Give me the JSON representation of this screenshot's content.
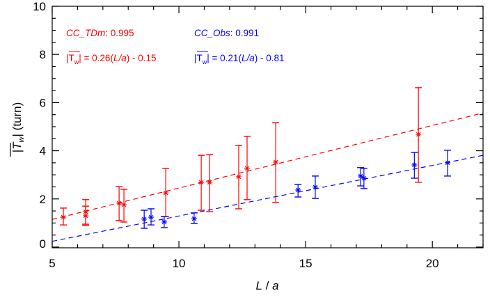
{
  "chart_data": {
    "type": "scatter",
    "xlabel": {
      "italic": "L",
      "rest": " / ",
      "italic2": "a"
    },
    "ylabel": {
      "bar_symbol": "T",
      "subscript": "w",
      "unit": "(turn)"
    },
    "xlim": [
      5,
      22
    ],
    "ylim": [
      -0.03,
      10
    ],
    "xticks": [
      5,
      10,
      15,
      20
    ],
    "yticks": [
      0,
      2,
      4,
      6,
      8,
      10
    ],
    "grid": false,
    "colors": {
      "red": "#ff0000",
      "blue": "#0000ff",
      "axis": "#000000"
    },
    "annotations": {
      "red_cc_name": "CC_TDm",
      "red_cc_value": ": 0.995",
      "blue_cc_name": "CC_Obs",
      "blue_cc_value": ": 0.991",
      "red_fit_prefix": " = 0.26(",
      "red_fit_var": "L/a",
      "red_fit_suffix": ") - 0.15",
      "blue_fit_prefix": " = 0.21(",
      "blue_fit_var": "L/a",
      "blue_fit_suffix": ") - 0.81",
      "fit_symbol": "T",
      "fit_subscript": "w"
    },
    "series": [
      {
        "color": "#ff0000",
        "marker": "asterisk",
        "fit": {
          "slope": 0.26,
          "intercept": -0.15,
          "style": "dashed"
        },
        "points": [
          {
            "x": 5.44,
            "y": 1.24,
            "ylo": 0.92,
            "yhi": 1.62
          },
          {
            "x": 6.32,
            "y": 1.47,
            "ylo": 0.9,
            "yhi": 1.97
          },
          {
            "x": 6.32,
            "y": 1.3,
            "ylo": 0.95,
            "yhi": 1.7
          },
          {
            "x": 7.64,
            "y": 1.82,
            "ylo": 1.1,
            "yhi": 2.51
          },
          {
            "x": 7.83,
            "y": 1.76,
            "ylo": 1.04,
            "yhi": 2.4
          },
          {
            "x": 9.48,
            "y": 2.25,
            "ylo": 1.27,
            "yhi": 3.27
          },
          {
            "x": 10.88,
            "y": 2.69,
            "ylo": 1.53,
            "yhi": 3.81
          },
          {
            "x": 11.21,
            "y": 2.69,
            "ylo": 1.47,
            "yhi": 3.84
          },
          {
            "x": 12.36,
            "y": 2.92,
            "ylo": 1.59,
            "yhi": 4.22
          },
          {
            "x": 12.69,
            "y": 3.27,
            "ylo": 1.97,
            "yhi": 4.6
          },
          {
            "x": 13.82,
            "y": 3.53,
            "ylo": 1.85,
            "yhi": 5.17
          },
          {
            "x": 19.45,
            "y": 4.68,
            "ylo": 2.69,
            "yhi": 6.62
          }
        ]
      },
      {
        "color": "#0000ff",
        "marker": "asterisk",
        "fit": {
          "slope": 0.21,
          "intercept": -0.81,
          "style": "dashed"
        },
        "points": [
          {
            "x": 8.63,
            "y": 1.16,
            "ylo": 0.78,
            "yhi": 1.53
          },
          {
            "x": 8.9,
            "y": 1.24,
            "ylo": 0.92,
            "yhi": 1.59
          },
          {
            "x": 9.42,
            "y": 1.04,
            "ylo": 0.81,
            "yhi": 1.27
          },
          {
            "x": 10.6,
            "y": 1.18,
            "ylo": 0.98,
            "yhi": 1.42
          },
          {
            "x": 14.7,
            "y": 2.37,
            "ylo": 2.08,
            "yhi": 2.6
          },
          {
            "x": 15.38,
            "y": 2.49,
            "ylo": 2.02,
            "yhi": 2.95
          },
          {
            "x": 17.17,
            "y": 2.95,
            "ylo": 2.54,
            "yhi": 3.3
          },
          {
            "x": 17.3,
            "y": 2.86,
            "ylo": 2.43,
            "yhi": 3.27
          },
          {
            "x": 19.29,
            "y": 3.41,
            "ylo": 2.86,
            "yhi": 3.93
          },
          {
            "x": 20.6,
            "y": 3.5,
            "ylo": 2.95,
            "yhi": 4.02
          }
        ]
      }
    ]
  }
}
